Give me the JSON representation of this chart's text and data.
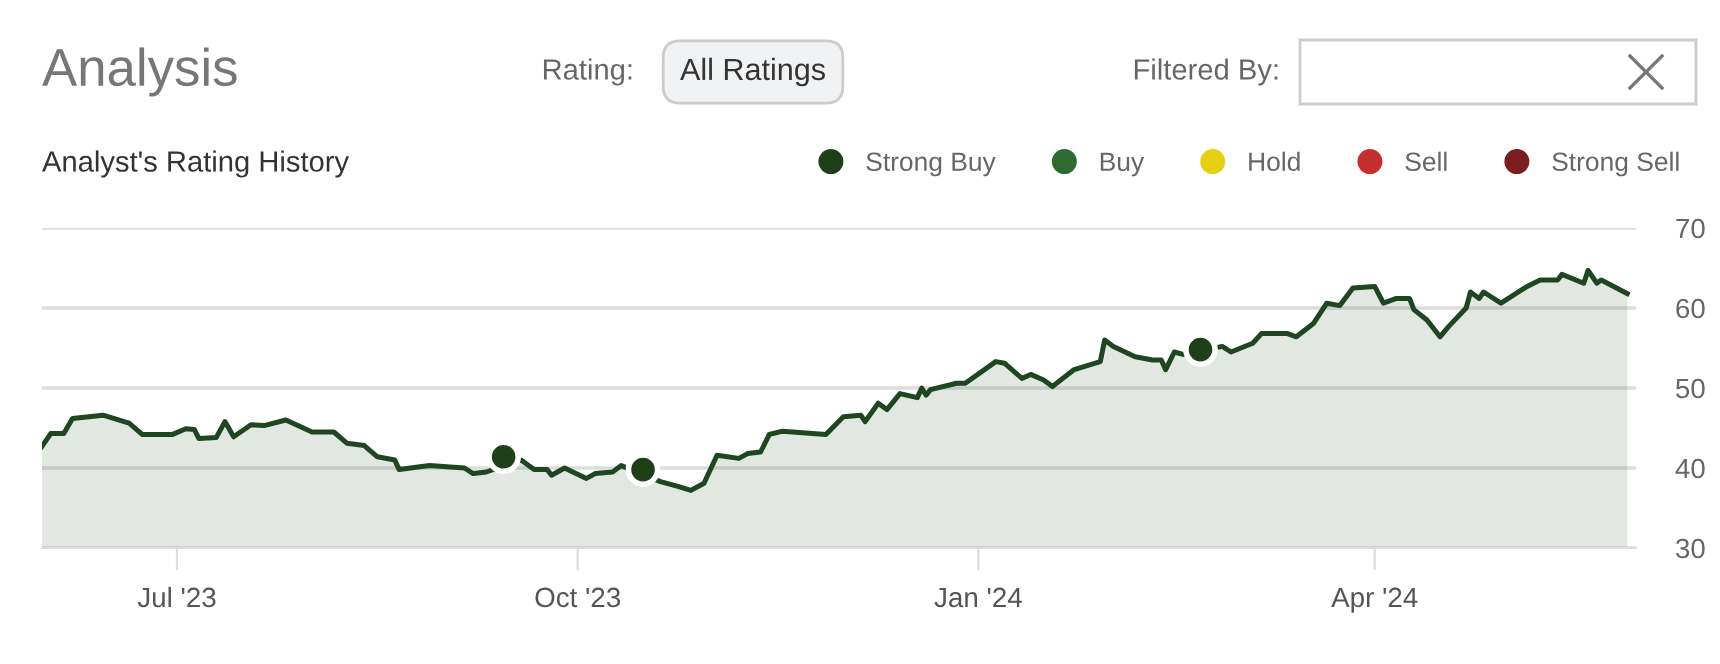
{
  "chart_data": {
    "type": "area",
    "title": "Analysis",
    "subtitle": "Analyst's Rating History",
    "annotations": [
      "Rating:",
      "All Ratings",
      "Filtered By:"
    ],
    "xlim": [
      "2023-05-31",
      "2024-05-31"
    ],
    "xticks": [
      {
        "value": "2023-07-01",
        "label": "Jul '23"
      },
      {
        "value": "2023-10-01",
        "label": "Oct '23"
      },
      {
        "value": "2024-01-01",
        "label": "Jan '24"
      },
      {
        "value": "2024-04-01",
        "label": "Apr '24"
      }
    ],
    "ylim": [
      30,
      70
    ],
    "yticks": [
      30,
      40,
      50,
      60,
      70
    ],
    "grid": "y",
    "legend": "top right",
    "series": [
      {
        "type": "area",
        "color": "#1e4620",
        "x": [
          "2023-05-31",
          "2023-06-02",
          "2023-06-05",
          "2023-06-07",
          "2023-06-14",
          "2023-06-20",
          "2023-06-23",
          "2023-06-30",
          "2023-07-03",
          "2023-07-05",
          "2023-07-06",
          "2023-07-10",
          "2023-07-12",
          "2023-07-14",
          "2023-07-18",
          "2023-07-21",
          "2023-07-26",
          "2023-08-01",
          "2023-08-06",
          "2023-08-09",
          "2023-08-13",
          "2023-08-16",
          "2023-08-20",
          "2023-08-21",
          "2023-08-28",
          "2023-09-05",
          "2023-09-07",
          "2023-09-10",
          "2023-09-18",
          "2023-09-21",
          "2023-09-24",
          "2023-09-25",
          "2023-09-28",
          "2023-10-03",
          "2023-10-05",
          "2023-10-09",
          "2023-10-11",
          "2023-10-20",
          "2023-10-24",
          "2023-10-27",
          "2023-10-30",
          "2023-11-02",
          "2023-11-07",
          "2023-11-09",
          "2023-11-12",
          "2023-11-14",
          "2023-11-17",
          "2023-11-27",
          "2023-12-01",
          "2023-12-05",
          "2023-12-06",
          "2023-12-09",
          "2023-12-11",
          "2023-12-14",
          "2023-12-18",
          "2023-12-19",
          "2023-12-20",
          "2023-12-21",
          "2023-12-27",
          "2023-12-29",
          "2024-01-05",
          "2024-01-07",
          "2024-01-11",
          "2024-01-13",
          "2024-01-16",
          "2024-01-18",
          "2024-01-23",
          "2024-01-29",
          "2024-01-30",
          "2024-02-01",
          "2024-02-06",
          "2024-02-10",
          "2024-02-12",
          "2024-02-13",
          "2024-02-15",
          "2024-02-17",
          "2024-02-26",
          "2024-02-28",
          "2024-03-04",
          "2024-03-06",
          "2024-03-12",
          "2024-03-14",
          "2024-03-18",
          "2024-03-21",
          "2024-03-24",
          "2024-03-27",
          "2024-04-01",
          "2024-04-03",
          "2024-04-06",
          "2024-04-09",
          "2024-04-10",
          "2024-04-13",
          "2024-04-16",
          "2024-04-18",
          "2024-04-22",
          "2024-04-23",
          "2024-04-25",
          "2024-04-26",
          "2024-04-30",
          "2024-05-06",
          "2024-05-09",
          "2024-05-13",
          "2024-05-14",
          "2024-05-19",
          "2024-05-20",
          "2024-05-22",
          "2024-05-23",
          "2024-05-29"
        ],
        "values": [
          42.7,
          44.3,
          44.3,
          46.2,
          46.6,
          45.6,
          44.2,
          44.2,
          44.9,
          44.8,
          43.7,
          43.8,
          45.8,
          43.9,
          45.4,
          45.3,
          46.0,
          44.5,
          44.5,
          43.1,
          42.8,
          41.4,
          41.0,
          39.8,
          40.3,
          40.0,
          39.3,
          39.5,
          41.0,
          39.8,
          39.8,
          39.1,
          40.0,
          38.7,
          39.3,
          39.5,
          40.3,
          38.3,
          37.7,
          37.2,
          38.1,
          41.6,
          41.2,
          41.8,
          42.0,
          44.2,
          44.6,
          44.2,
          46.4,
          46.6,
          45.8,
          48.1,
          47.3,
          49.3,
          48.8,
          50.0,
          49.1,
          49.8,
          50.6,
          50.6,
          53.3,
          53.1,
          51.2,
          51.7,
          51.0,
          50.2,
          52.3,
          53.3,
          56.0,
          55.2,
          53.9,
          53.5,
          53.5,
          52.3,
          54.5,
          54.2,
          55.2,
          54.5,
          55.6,
          56.8,
          56.8,
          56.4,
          58.1,
          60.6,
          60.3,
          62.5,
          62.7,
          60.6,
          61.2,
          61.2,
          59.8,
          58.5,
          56.4,
          57.7,
          60.0,
          62.0,
          61.2,
          62.0,
          60.6,
          62.7,
          63.5,
          63.5,
          64.2,
          63.1,
          64.7,
          63.1,
          63.5,
          61.8
        ]
      },
      {
        "type": "scatter",
        "name": "Strong Buy",
        "color": "#1e3f1a",
        "x": [
          "2023-09-14",
          "2023-10-16",
          "2024-02-21"
        ],
        "values": [
          41.4,
          39.8,
          54.8
        ]
      },
      {
        "type": "scatter",
        "name": "Buy",
        "color": "#2e6b30"
      },
      {
        "type": "scatter",
        "name": "Hold",
        "color": "#e6cf10"
      },
      {
        "type": "scatter",
        "name": "Sell",
        "color": "#c62f2f"
      },
      {
        "type": "scatter",
        "name": "Strong Sell",
        "color": "#7a1e1e"
      }
    ]
  }
}
